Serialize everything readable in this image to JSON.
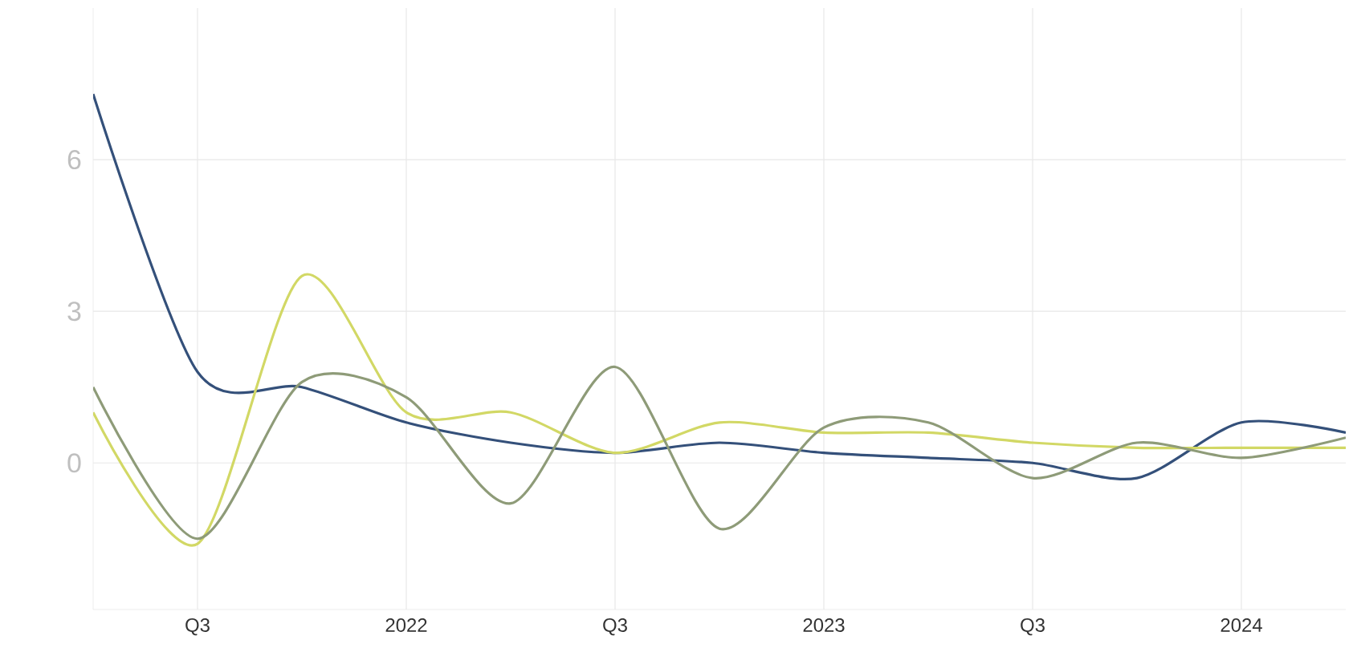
{
  "chart_data": {
    "type": "line",
    "x": [
      "2021-04",
      "2021-07",
      "2021-10",
      "2022-01",
      "2022-04",
      "2022-07",
      "2022-10",
      "2023-01",
      "2023-04",
      "2023-07",
      "2023-10",
      "2024-01",
      "2024-04"
    ],
    "series": [
      {
        "color": "#34507a",
        "values": [
          7.3,
          1.8,
          1.5,
          0.8,
          0.4,
          0.2,
          0.4,
          0.2,
          0.1,
          0.0,
          -0.3,
          0.8,
          0.6
        ]
      },
      {
        "color": "#d2d865",
        "values": [
          1.0,
          -1.6,
          3.7,
          1.0,
          1.0,
          0.2,
          0.8,
          0.6,
          0.6,
          0.4,
          0.3,
          0.3,
          0.3
        ]
      },
      {
        "color": "#8e9b78",
        "values": [
          1.5,
          -1.5,
          1.6,
          1.3,
          -0.8,
          1.9,
          -1.3,
          0.7,
          0.8,
          -0.3,
          0.4,
          0.1,
          0.5
        ]
      }
    ],
    "xlim": [
      "2021-04",
      "2024-04"
    ],
    "xticks": [
      {
        "value": "2021-07",
        "label": "Q3"
      },
      "2022",
      {
        "value": "2022-07",
        "label": "Q3"
      },
      "2023",
      {
        "value": "2023-07",
        "label": "Q3"
      },
      "2024"
    ],
    "ylim": [
      -2.9,
      9
    ],
    "yticks": [
      0,
      3,
      6
    ],
    "grid": true,
    "legend": false,
    "marker": "none",
    "line_style": "solid"
  }
}
